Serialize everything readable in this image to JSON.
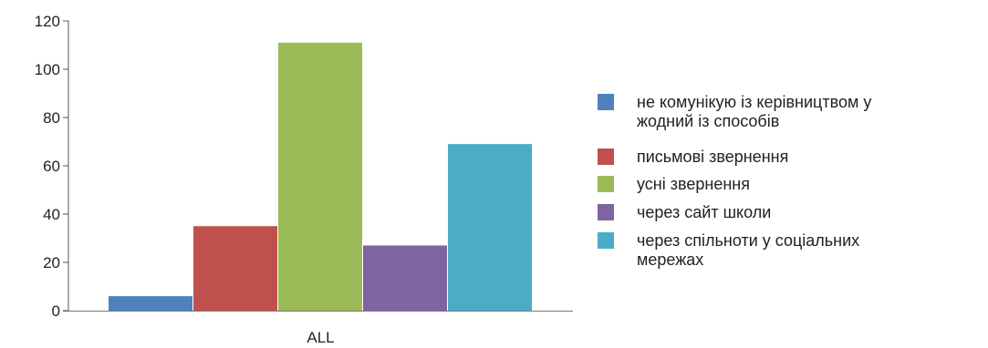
{
  "chart_data": {
    "type": "bar",
    "categories": [
      "ALL"
    ],
    "series": [
      {
        "name": "не комунікую із керівництвом у жодний із способів",
        "legend_lines": [
          "не комунікую із керівництвом у",
          "жодний із способів"
        ],
        "values": [
          6
        ],
        "color": "#4f81bd"
      },
      {
        "name": "письмові звернення",
        "legend_lines": [
          "письмові звернення"
        ],
        "values": [
          35
        ],
        "color": "#c0504d"
      },
      {
        "name": "усні звернення",
        "legend_lines": [
          "усні звернення"
        ],
        "values": [
          111
        ],
        "color": "#9bbb59"
      },
      {
        "name": "через сайт школи",
        "legend_lines": [
          "через сайт школи"
        ],
        "values": [
          27
        ],
        "color": "#8064a2"
      },
      {
        "name": "через спільноти у соціальних мережах",
        "legend_lines": [
          "через спільноти у соціальних",
          "мережах"
        ],
        "values": [
          69
        ],
        "color": "#4bacc6"
      }
    ],
    "yticks": [
      0,
      20,
      40,
      60,
      80,
      100,
      120
    ],
    "ylim": [
      0,
      120
    ],
    "grid": false,
    "legend_position": "right",
    "title": "",
    "xlabel": "",
    "ylabel": ""
  }
}
